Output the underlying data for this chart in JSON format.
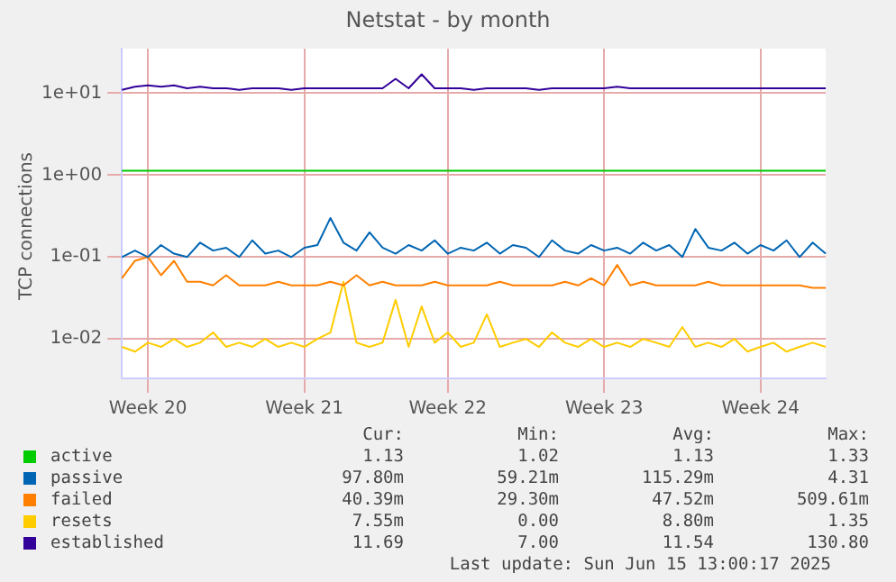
{
  "chart_data": {
    "type": "line",
    "title": "Netstat - by month",
    "ylabel": "TCP connections",
    "log": "y",
    "grid": true,
    "legend": "bottom",
    "marker": "none",
    "line_style": "solid",
    "categories": [
      null,
      null,
      "Week 20",
      null,
      null,
      null,
      null,
      null,
      null,
      null,
      null,
      null,
      null,
      null,
      "Week 21",
      null,
      null,
      null,
      null,
      null,
      null,
      null,
      null,
      null,
      null,
      "Week 22",
      null,
      null,
      null,
      null,
      null,
      null,
      null,
      null,
      null,
      null,
      null,
      "Week 23",
      null,
      null,
      null,
      null,
      null,
      null,
      null,
      null,
      null,
      null,
      null,
      "Week 24",
      null,
      null,
      null,
      null,
      null
    ],
    "ylim": [
      0.0033,
      35
    ],
    "yticks": [
      {
        "value": 0.01,
        "label": "1e-02"
      },
      {
        "value": 0.1,
        "label": "1e-01"
      },
      {
        "value": 1,
        "label": "1e+00"
      },
      {
        "value": 10,
        "label": "1e+01"
      }
    ],
    "series": [
      {
        "name": "active",
        "color": "#00cc00",
        "values": [
          1.13,
          1.13,
          1.13,
          1.13,
          1.13,
          1.13,
          1.13,
          1.13,
          1.13,
          1.13,
          1.13,
          1.13,
          1.13,
          1.13,
          1.13,
          1.13,
          1.13,
          1.13,
          1.13,
          1.13,
          1.13,
          1.13,
          1.13,
          1.13,
          1.13,
          1.13,
          1.13,
          1.13,
          1.13,
          1.13,
          1.13,
          1.13,
          1.13,
          1.13,
          1.13,
          1.13,
          1.13,
          1.13,
          1.13,
          1.13,
          1.13,
          1.13,
          1.13,
          1.13,
          1.13,
          1.13,
          1.13,
          1.13,
          1.13,
          1.13,
          1.13,
          1.13,
          1.13,
          1.13,
          1.13
        ]
      },
      {
        "name": "passive",
        "color": "#0066b3",
        "values": [
          0.1,
          0.12,
          0.1,
          0.14,
          0.11,
          0.1,
          0.15,
          0.12,
          0.13,
          0.1,
          0.16,
          0.11,
          0.12,
          0.1,
          0.13,
          0.14,
          0.3,
          0.15,
          0.12,
          0.2,
          0.13,
          0.11,
          0.14,
          0.12,
          0.16,
          0.11,
          0.13,
          0.12,
          0.15,
          0.11,
          0.14,
          0.13,
          0.1,
          0.16,
          0.12,
          0.11,
          0.14,
          0.12,
          0.13,
          0.11,
          0.15,
          0.12,
          0.14,
          0.1,
          0.22,
          0.13,
          0.12,
          0.15,
          0.11,
          0.14,
          0.12,
          0.16,
          0.1,
          0.15,
          0.11
        ]
      },
      {
        "name": "failed",
        "color": "#ff8000",
        "values": [
          0.055,
          0.09,
          0.1,
          0.06,
          0.09,
          0.05,
          0.05,
          0.045,
          0.06,
          0.045,
          0.045,
          0.045,
          0.05,
          0.045,
          0.045,
          0.045,
          0.05,
          0.045,
          0.06,
          0.045,
          0.05,
          0.045,
          0.045,
          0.045,
          0.05,
          0.045,
          0.045,
          0.045,
          0.045,
          0.05,
          0.045,
          0.045,
          0.045,
          0.045,
          0.05,
          0.045,
          0.055,
          0.045,
          0.08,
          0.045,
          0.05,
          0.045,
          0.045,
          0.045,
          0.045,
          0.05,
          0.045,
          0.045,
          0.045,
          0.045,
          0.045,
          0.045,
          0.045,
          0.042,
          0.042
        ]
      },
      {
        "name": "resets",
        "color": "#ffcc00",
        "values": [
          0.008,
          0.007,
          0.009,
          0.008,
          0.01,
          0.008,
          0.009,
          0.012,
          0.008,
          0.009,
          0.008,
          0.01,
          0.008,
          0.009,
          0.008,
          0.01,
          0.012,
          0.05,
          0.009,
          0.008,
          0.009,
          0.03,
          0.008,
          0.025,
          0.009,
          0.012,
          0.008,
          0.009,
          0.02,
          0.008,
          0.009,
          0.01,
          0.008,
          0.012,
          0.009,
          0.008,
          0.01,
          0.008,
          0.009,
          0.008,
          0.01,
          0.009,
          0.008,
          0.014,
          0.008,
          0.009,
          0.008,
          0.01,
          0.007,
          0.008,
          0.009,
          0.007,
          0.008,
          0.009,
          0.008
        ]
      },
      {
        "name": "established",
        "color": "#330099",
        "values": [
          11,
          12,
          12.5,
          12,
          12.5,
          11.5,
          12,
          11.5,
          11.5,
          11,
          11.5,
          11.5,
          11.5,
          11,
          11.5,
          11.5,
          11.5,
          11.5,
          11.5,
          11.5,
          11.5,
          15,
          11.5,
          17,
          11.5,
          11.5,
          11.5,
          11,
          11.5,
          11.5,
          11.5,
          11.5,
          11,
          11.5,
          11.5,
          11.5,
          11.5,
          11.5,
          12,
          11.5,
          11.5,
          11.5,
          11.5,
          11.5,
          11.5,
          11.5,
          11.5,
          11.5,
          11.5,
          11.5,
          11.5,
          11.5,
          11.5,
          11.5,
          11.5
        ]
      }
    ],
    "annotations": [
      "Cur:",
      "Min:",
      "Avg:",
      "Max:",
      "1.13",
      "1.02",
      "1.13",
      "1.33",
      "97.80m",
      "59.21m",
      "115.29m",
      "4.31",
      "40.39m",
      "29.30m",
      "47.52m",
      "509.61m",
      "7.55m",
      "0.00",
      "8.80m",
      "1.35",
      "11.69",
      "7.00",
      "11.54",
      "130.80",
      "Last update: Sun Jun 15 13:00:17 2025"
    ]
  }
}
